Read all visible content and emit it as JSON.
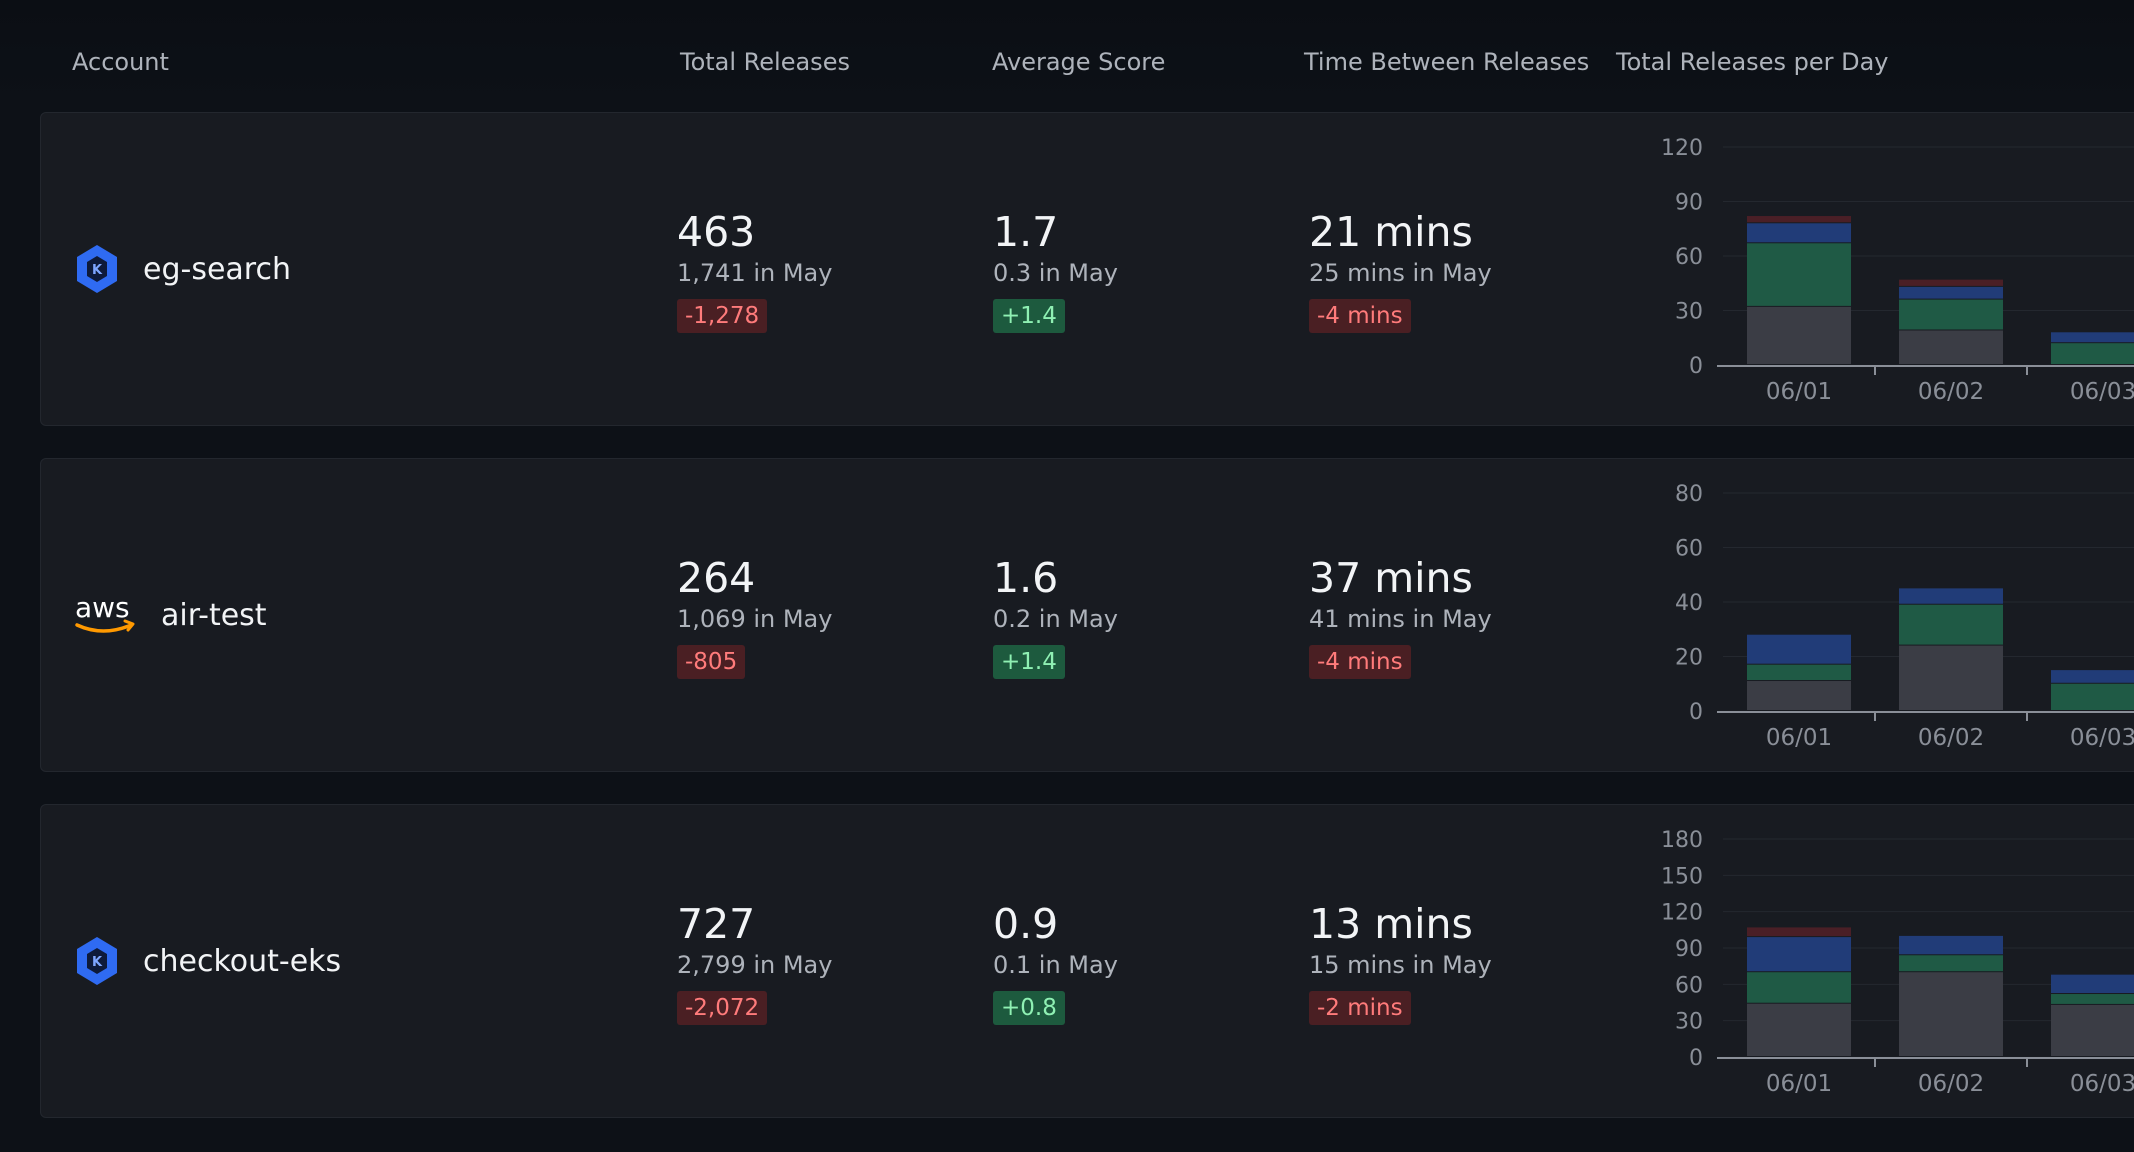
{
  "header": {
    "account": "Account",
    "total_releases": "Total Releases",
    "average_score": "Average Score",
    "time_between": "Time Between Releases",
    "per_day": "Total Releases per Day"
  },
  "colors": {
    "neutral": "#3b3d45",
    "green": "#1f5a45",
    "blue": "#213c78",
    "red": "#4a1f26",
    "axis": "#8a8f98",
    "grid": "#24282f",
    "tick_text": "#8a8f98"
  },
  "accounts": [
    {
      "name": "eg-search",
      "icon": "kubernetes-icon",
      "total_releases": {
        "value": "463",
        "sub": "1,741 in May",
        "delta": "-1,278",
        "tone": "neg"
      },
      "average_score": {
        "value": "1.7",
        "sub": "0.3 in May",
        "delta": "+1.4",
        "tone": "pos"
      },
      "time_between": {
        "value": "21 mins",
        "sub": "25 mins in May",
        "delta": "-4 mins",
        "tone": "neg"
      }
    },
    {
      "name": "air-test",
      "icon": "aws-icon",
      "total_releases": {
        "value": "264",
        "sub": "1,069 in May",
        "delta": "-805",
        "tone": "neg"
      },
      "average_score": {
        "value": "1.6",
        "sub": "0.2 in May",
        "delta": "+1.4",
        "tone": "pos"
      },
      "time_between": {
        "value": "37 mins",
        "sub": "41 mins in May",
        "delta": "-4 mins",
        "tone": "neg"
      }
    },
    {
      "name": "checkout-eks",
      "icon": "kubernetes-icon",
      "total_releases": {
        "value": "727",
        "sub": "2,799 in May",
        "delta": "-2,072",
        "tone": "neg"
      },
      "average_score": {
        "value": "0.9",
        "sub": "0.1 in May",
        "delta": "+0.8",
        "tone": "pos"
      },
      "time_between": {
        "value": "13 mins",
        "sub": "15 mins in May",
        "delta": "-2 mins",
        "tone": "neg"
      }
    }
  ],
  "chart_data": [
    {
      "type": "bar",
      "title": "Total Releases per Day",
      "account": "eg-search",
      "stacked": true,
      "categories": [
        "06/01",
        "06/02",
        "06/03"
      ],
      "ylim": [
        0,
        120
      ],
      "yticks": [
        0,
        30,
        60,
        90,
        120
      ],
      "series": [
        {
          "name": "neutral",
          "values": [
            32,
            19,
            0
          ]
        },
        {
          "name": "green",
          "values": [
            35,
            17,
            12
          ]
        },
        {
          "name": "blue",
          "values": [
            11,
            7,
            6
          ]
        },
        {
          "name": "red",
          "values": [
            4,
            4,
            0
          ]
        }
      ]
    },
    {
      "type": "bar",
      "title": "Total Releases per Day",
      "account": "air-test",
      "stacked": true,
      "categories": [
        "06/01",
        "06/02",
        "06/03"
      ],
      "ylim": [
        0,
        80
      ],
      "yticks": [
        0,
        20,
        40,
        60,
        80
      ],
      "series": [
        {
          "name": "neutral",
          "values": [
            11,
            24,
            0
          ]
        },
        {
          "name": "green",
          "values": [
            6,
            15,
            10
          ]
        },
        {
          "name": "blue",
          "values": [
            11,
            6,
            5
          ]
        },
        {
          "name": "red",
          "values": [
            0,
            0,
            0
          ]
        }
      ]
    },
    {
      "type": "bar",
      "title": "Total Releases per Day",
      "account": "checkout-eks",
      "stacked": true,
      "categories": [
        "06/01",
        "06/02",
        "06/03"
      ],
      "ylim": [
        0,
        180
      ],
      "yticks": [
        0,
        30,
        60,
        90,
        120,
        150,
        180
      ],
      "series": [
        {
          "name": "neutral",
          "values": [
            44,
            70,
            43
          ]
        },
        {
          "name": "green",
          "values": [
            26,
            14,
            9
          ]
        },
        {
          "name": "blue",
          "values": [
            29,
            16,
            16
          ]
        },
        {
          "name": "red",
          "values": [
            8,
            0,
            0
          ]
        }
      ]
    }
  ]
}
